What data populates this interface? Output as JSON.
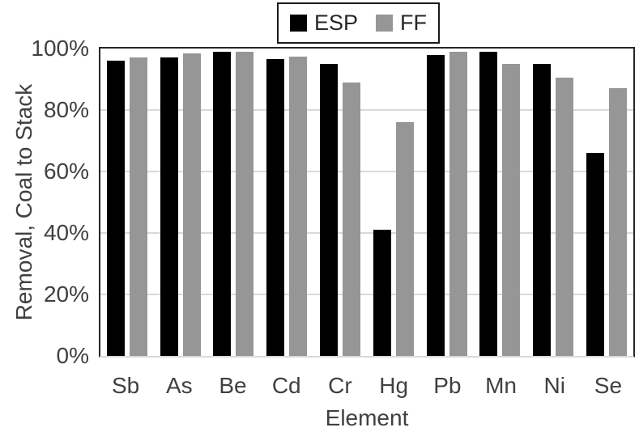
{
  "colors": {
    "esp_bar": "#000000",
    "ff_bar": "#969696",
    "gridline": "#d9d9d9",
    "plot_border": "#262626",
    "axis_bottom_line": "#d9d9d9",
    "axis_text": "#404040",
    "legend_border": "#1a1a1a",
    "legend_text": "#262626",
    "background": "#ffffff"
  },
  "chart_data": {
    "type": "bar",
    "title": "",
    "categories": [
      "Sb",
      "As",
      "Be",
      "Cd",
      "Cr",
      "Hg",
      "Pb",
      "Mn",
      "Ni",
      "Se"
    ],
    "series": [
      {
        "name": "ESP",
        "color_key": "esp_bar",
        "values": [
          96,
          97,
          99,
          96.5,
          95,
          41,
          98,
          99,
          95,
          66
        ]
      },
      {
        "name": "FF",
        "color_key": "ff_bar",
        "values": [
          97,
          98.5,
          99,
          97.5,
          89,
          76,
          99,
          95,
          90.5,
          87
        ]
      }
    ],
    "xlabel": "Element",
    "ylabel": "Removal, Coal to Stack",
    "ylim": [
      0,
      100
    ],
    "yticks": [
      {
        "value": 0,
        "label": "0%"
      },
      {
        "value": 20,
        "label": "20%"
      },
      {
        "value": 40,
        "label": "40%"
      },
      {
        "value": 60,
        "label": "60%"
      },
      {
        "value": 80,
        "label": "80%"
      },
      {
        "value": 100,
        "label": "100%"
      }
    ],
    "grid": "horizontal",
    "legend_position": "top-center"
  }
}
